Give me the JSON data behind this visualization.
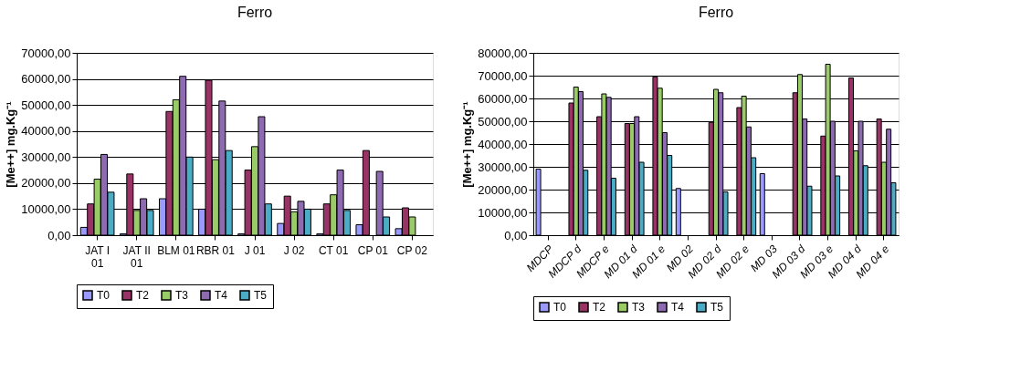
{
  "chart_data": [
    {
      "type": "bar",
      "title": "Ferro",
      "ylabel": "[Me++] mg.Kg⁻¹",
      "legend": "bottom",
      "grid": "y",
      "categories": [
        "JAT I 01",
        "JAT II 01",
        "BLM 01",
        "RBR 01",
        "J 01",
        "J 02",
        "CT 01",
        "CP 01",
        "CP 02"
      ],
      "ylim": [
        0,
        70000
      ],
      "yticks": [
        {
          "value": 0,
          "label": "0,00"
        },
        {
          "value": 10000,
          "label": "10000,00"
        },
        {
          "value": 20000,
          "label": "20000,00"
        },
        {
          "value": 30000,
          "label": "30000,00"
        },
        {
          "value": 40000,
          "label": "40000,00"
        },
        {
          "value": 50000,
          "label": "50000,00"
        },
        {
          "value": 60000,
          "label": "60000,00"
        },
        {
          "value": 70000,
          "label": "70000,00"
        }
      ],
      "series": [
        {
          "name": "T0",
          "color": "#9999ff",
          "values": [
            3000,
            500,
            14000,
            10000,
            500,
            4500,
            500,
            4000,
            2500
          ]
        },
        {
          "name": "T2",
          "color": "#993366",
          "values": [
            12000,
            23500,
            47500,
            59500,
            25000,
            15000,
            12000,
            32500,
            10500
          ]
        },
        {
          "name": "T3",
          "color": "#99cc66",
          "values": [
            21500,
            9500,
            52000,
            29000,
            34000,
            9000,
            15500,
            null,
            7000
          ]
        },
        {
          "name": "T4",
          "color": "#8e6bb0",
          "values": [
            31000,
            14000,
            61000,
            51500,
            45500,
            13000,
            25000,
            24500,
            null
          ]
        },
        {
          "name": "T5",
          "color": "#4bacc6",
          "values": [
            16500,
            9500,
            30000,
            32500,
            12000,
            10000,
            9500,
            7000,
            null
          ]
        }
      ]
    },
    {
      "type": "bar",
      "title": "Ferro",
      "ylabel": "[Me++] mg.Kg⁻¹",
      "legend": "bottom",
      "grid": "y",
      "categories": [
        "MDCP",
        "MDCP d",
        "MDCP e",
        "MD 01 d",
        "MD 01 e",
        "MD 02",
        "MD 02 d",
        "MD 02 e",
        "MD 03",
        "MD 03 d",
        "MD 03 e",
        "MD 04 d",
        "MD 04 e"
      ],
      "ylim": [
        0,
        80000
      ],
      "yticks": [
        {
          "value": 0,
          "label": "0,00"
        },
        {
          "value": 10000,
          "label": "10000,00"
        },
        {
          "value": 20000,
          "label": "20000,00"
        },
        {
          "value": 30000,
          "label": "30000,00"
        },
        {
          "value": 40000,
          "label": "40000,00"
        },
        {
          "value": 50000,
          "label": "50000,00"
        },
        {
          "value": 60000,
          "label": "60000,00"
        },
        {
          "value": 70000,
          "label": "70000,00"
        },
        {
          "value": 80000,
          "label": "80000,00"
        }
      ],
      "series": [
        {
          "name": "T0",
          "color": "#9999ff",
          "values": [
            29000,
            null,
            null,
            null,
            null,
            20500,
            null,
            null,
            27000,
            null,
            null,
            null,
            null
          ]
        },
        {
          "name": "T2",
          "color": "#993366",
          "values": [
            null,
            58000,
            52000,
            49000,
            69500,
            null,
            49500,
            56000,
            null,
            62500,
            43500,
            69000,
            51000
          ]
        },
        {
          "name": "T3",
          "color": "#99cc66",
          "values": [
            null,
            65000,
            62000,
            49000,
            64500,
            null,
            64000,
            61000,
            null,
            70500,
            75000,
            37000,
            32000
          ]
        },
        {
          "name": "T4",
          "color": "#8e6bb0",
          "values": [
            null,
            63000,
            60500,
            52000,
            45000,
            null,
            62500,
            47500,
            null,
            51000,
            50000,
            50000,
            46500
          ]
        },
        {
          "name": "T5",
          "color": "#4bacc6",
          "values": [
            null,
            28500,
            25000,
            32000,
            35000,
            null,
            19000,
            34000,
            null,
            21500,
            26000,
            30500,
            23000
          ]
        }
      ]
    }
  ]
}
